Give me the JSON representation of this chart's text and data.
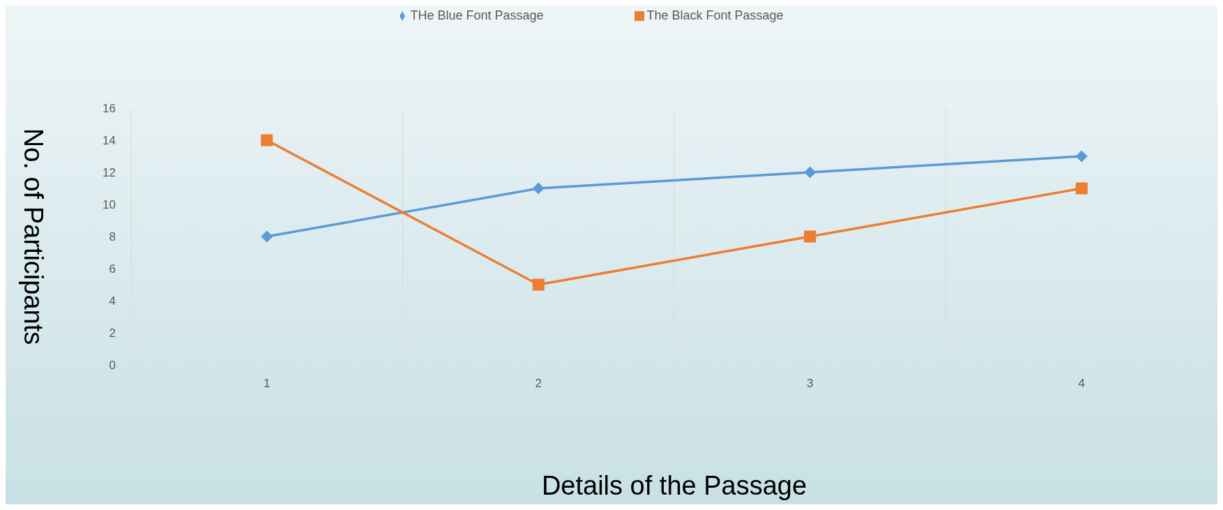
{
  "chart_data": {
    "type": "line",
    "xlabel": "Details of the Passage",
    "ylabel": "No. of Participants",
    "categories": [
      "1",
      "2",
      "3",
      "4"
    ],
    "series": [
      {
        "name": "THe Blue Font Passage",
        "color": "#5b9bd5",
        "marker": "diamond",
        "values": [
          8,
          11,
          12,
          13
        ]
      },
      {
        "name": "The Black Font Passage",
        "color": "#ed7d31",
        "marker": "square",
        "values": [
          14,
          5,
          8,
          11
        ]
      }
    ],
    "ylim": [
      0,
      16
    ],
    "yticks": [
      0,
      2,
      4,
      6,
      8,
      10,
      12,
      14,
      16
    ],
    "grid": "x",
    "legend": "top",
    "line_style": "solid"
  }
}
